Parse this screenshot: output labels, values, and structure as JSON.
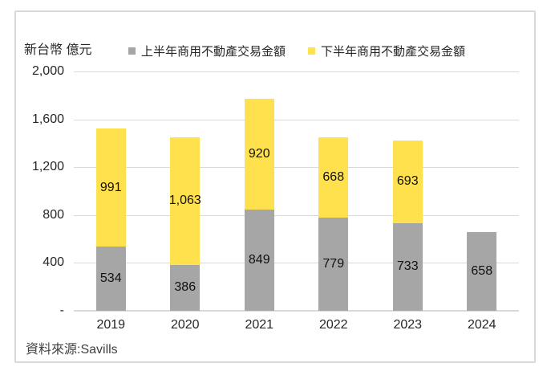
{
  "chart_data": {
    "type": "bar",
    "stacked": true,
    "title": "",
    "unit_label": "新台幣 億元",
    "categories": [
      "2019",
      "2020",
      "2021",
      "2022",
      "2023",
      "2024"
    ],
    "series": [
      {
        "name": "上半年商用不動產交易金額",
        "color": "#A6A6A6",
        "values": [
          534,
          386,
          849,
          779,
          733,
          658
        ]
      },
      {
        "name": "下半年商用不動產交易金額",
        "color": "#FFE14D",
        "values": [
          991,
          1063,
          920,
          668,
          693,
          null
        ]
      }
    ],
    "value_labels": [
      [
        "534",
        "386",
        "849",
        "779",
        "733",
        "658"
      ],
      [
        "991",
        "1,063",
        "920",
        "668",
        "693",
        ""
      ]
    ],
    "ylim": [
      0,
      2000
    ],
    "ytick_values": [
      0,
      400,
      800,
      1200,
      1600,
      2000
    ],
    "ytick_labels": [
      "-",
      "400",
      "800",
      "1,200",
      "1,600",
      "2,000"
    ],
    "grid": true,
    "legend_position": "top",
    "source": "資料來源:Savills",
    "colors": {
      "first_half": "#A6A6A6",
      "second_half": "#FFE14D",
      "gridline": "#D9D9D9",
      "frame_border": "#D9D9D9",
      "label_text": "#111111",
      "axis_text": "#262626",
      "source_text": "#404040"
    }
  }
}
